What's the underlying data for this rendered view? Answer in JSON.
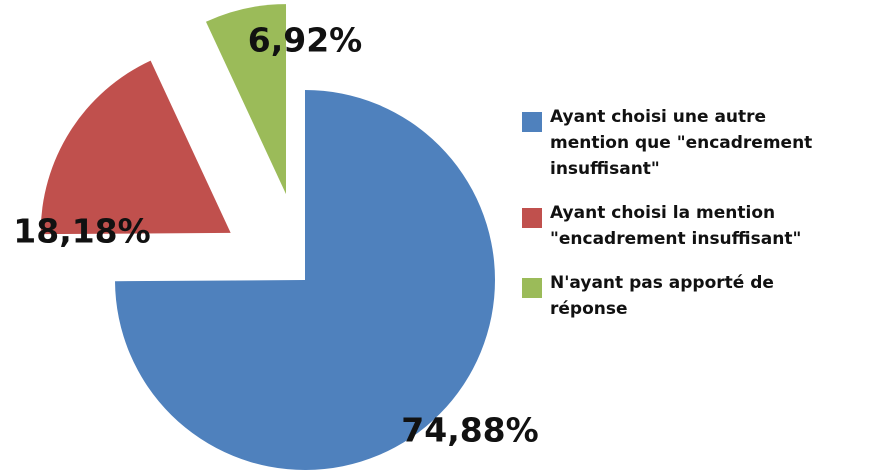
{
  "chart_data": {
    "type": "pie",
    "series": [
      {
        "names": [
          "Ayant choisi une autre mention que \"encadrement insuffisant\"",
          "Ayant choisi la mention \"encadrement insuffisant\"",
          "N'ayant pas apporté de réponse"
        ],
        "values": [
          74.88,
          18.18,
          6.92
        ],
        "value_labels": [
          "74,88%",
          "18,18%",
          "6,92%"
        ],
        "colors": [
          "#4f81bd",
          "#c0504d",
          "#9bbb59"
        ]
      }
    ],
    "legend": "right"
  }
}
